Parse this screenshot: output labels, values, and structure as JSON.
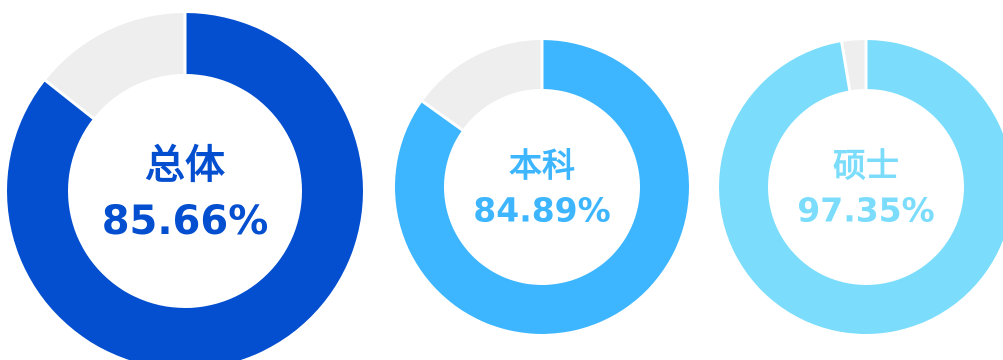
{
  "colors": {
    "track": "#EEEEEE",
    "separator": "#FFFFFF",
    "background": "#FFFFFF"
  },
  "chart_data": [
    {
      "type": "pie",
      "subtype": "donut",
      "title": "总体",
      "value_label": "85.66%",
      "value": 85.66,
      "max": 100,
      "color": "#034FCF"
    },
    {
      "type": "pie",
      "subtype": "donut",
      "title": "本科",
      "value_label": "84.89%",
      "value": 84.89,
      "max": 100,
      "color": "#3DB6FF"
    },
    {
      "type": "pie",
      "subtype": "donut",
      "title": "硕士",
      "value_label": "97.35%",
      "value": 97.35,
      "max": 100,
      "color": "#7BDDFB"
    }
  ]
}
